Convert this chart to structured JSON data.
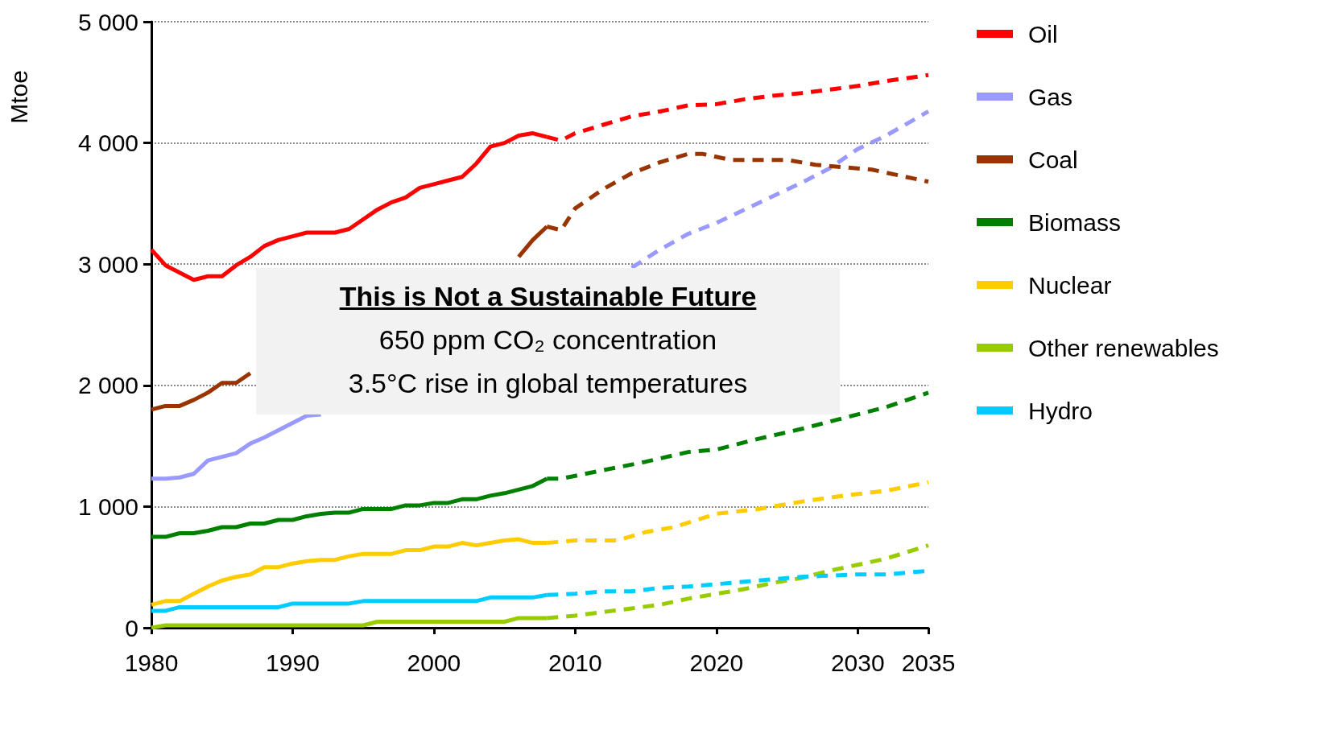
{
  "chart_data": {
    "type": "line",
    "ylabel": "Mtoe",
    "xlim": [
      1980,
      2035
    ],
    "xticks": [
      1980,
      1990,
      2000,
      2010,
      2020,
      2030,
      2035
    ],
    "ylim": [
      0,
      5000
    ],
    "yticks": [
      {
        "value": 0,
        "label": "0"
      },
      {
        "value": 1000,
        "label": "1 000"
      },
      {
        "value": 2000,
        "label": "2 000"
      },
      {
        "value": 3000,
        "label": "3 000"
      },
      {
        "value": 4000,
        "label": "4 000"
      },
      {
        "value": 5000,
        "label": "5 000"
      }
    ],
    "grid": "y",
    "legend": "right",
    "marker": "none",
    "annotations": [
      "This is Not a Sustainable Future",
      "650 ppm CO₂ concentration",
      "3.5°C rise in global temperatures"
    ],
    "series": [
      {
        "name": "Oil",
        "color": "#ff0000",
        "line_style": "solid",
        "x": [
          1980,
          1981,
          1982,
          1983,
          1984,
          1985,
          1986,
          1987,
          1988,
          1989,
          1990,
          1991,
          1992,
          1993,
          1994,
          1995,
          1996,
          1997,
          1998,
          1999,
          2000,
          2001,
          2002,
          2003,
          2004,
          2005,
          2006,
          2007,
          2008
        ],
        "values": [
          3120,
          2990,
          2930,
          2870,
          2900,
          2900,
          2990,
          3060,
          3150,
          3200,
          3230,
          3260,
          3260,
          3260,
          3290,
          3370,
          3450,
          3510,
          3550,
          3630,
          3660,
          3690,
          3720,
          3830,
          3970,
          4000,
          4060,
          4080,
          4050
        ]
      },
      {
        "color": "#ff0000",
        "line_style": "dashed",
        "x": [
          2008,
          2009,
          2010,
          2012,
          2014,
          2016,
          2018,
          2020,
          2022,
          2024,
          2026,
          2028,
          2030,
          2032,
          2035
        ],
        "values": [
          4050,
          4020,
          4080,
          4150,
          4220,
          4260,
          4310,
          4320,
          4360,
          4390,
          4410,
          4440,
          4470,
          4510,
          4560
        ]
      },
      {
        "name": "Gas",
        "color": "#9999ff",
        "line_style": "solid",
        "x": [
          1980,
          1981,
          1982,
          1983,
          1984,
          1985,
          1986,
          1987,
          1988,
          1989,
          1990,
          1991,
          1992
        ],
        "values": [
          1230,
          1230,
          1240,
          1270,
          1380,
          1410,
          1440,
          1520,
          1570,
          1630,
          1690,
          1750,
          1760
        ]
      },
      {
        "color": "#9999ff",
        "line_style": "dashed",
        "x": [
          2014,
          2016,
          2018,
          2020,
          2022,
          2024,
          2026,
          2028,
          2030,
          2032,
          2035
        ],
        "values": [
          2970,
          3120,
          3250,
          3340,
          3450,
          3560,
          3670,
          3790,
          3950,
          4060,
          4260
        ]
      },
      {
        "name": "Coal",
        "color": "#993300",
        "line_style": "solid",
        "x": [
          1980,
          1981,
          1982,
          1983,
          1984,
          1985,
          1986,
          1987
        ],
        "values": [
          1800,
          1830,
          1830,
          1880,
          1940,
          2020,
          2020,
          2100
        ]
      },
      {
        "color": "#993300",
        "line_style": "solid",
        "x": [
          2006,
          2007,
          2008
        ],
        "values": [
          3060,
          3200,
          3310
        ]
      },
      {
        "color": "#993300",
        "line_style": "dashed",
        "x": [
          2008,
          2009,
          2010,
          2012,
          2014,
          2016,
          2018,
          2019,
          2021,
          2023,
          2025,
          2027,
          2029,
          2031,
          2035
        ],
        "values": [
          3310,
          3280,
          3460,
          3620,
          3750,
          3840,
          3910,
          3910,
          3860,
          3860,
          3860,
          3820,
          3800,
          3780,
          3680
        ]
      },
      {
        "name": "Biomass",
        "color": "#008000",
        "line_style": "solid",
        "x": [
          1980,
          1981,
          1982,
          1983,
          1984,
          1985,
          1986,
          1987,
          1988,
          1989,
          1990,
          1991,
          1992,
          1993,
          1994,
          1995,
          1996,
          1997,
          1998,
          1999,
          2000,
          2001,
          2002,
          2003,
          2004,
          2005,
          2006,
          2007,
          2008
        ],
        "values": [
          750,
          750,
          780,
          780,
          800,
          830,
          830,
          860,
          860,
          890,
          890,
          920,
          940,
          950,
          950,
          980,
          980,
          980,
          1010,
          1010,
          1030,
          1030,
          1060,
          1060,
          1090,
          1110,
          1140,
          1170,
          1230
        ]
      },
      {
        "color": "#008000",
        "line_style": "dashed",
        "x": [
          2008,
          2009,
          2012,
          2015,
          2018,
          2020,
          2023,
          2026,
          2029,
          2032,
          2035
        ],
        "values": [
          1230,
          1230,
          1300,
          1370,
          1450,
          1470,
          1560,
          1640,
          1730,
          1820,
          1940
        ]
      },
      {
        "name": "Nuclear",
        "color": "#ffcc00",
        "line_style": "solid",
        "x": [
          1980,
          1981,
          1982,
          1983,
          1984,
          1985,
          1986,
          1987,
          1988,
          1989,
          1990,
          1991,
          1992,
          1993,
          1994,
          1995,
          1996,
          1997,
          1998,
          1999,
          2000,
          2001,
          2002,
          2003,
          2004,
          2005,
          2006,
          2007,
          2008
        ],
        "values": [
          190,
          220,
          220,
          280,
          340,
          390,
          420,
          440,
          500,
          500,
          530,
          550,
          560,
          560,
          590,
          610,
          610,
          610,
          640,
          640,
          670,
          670,
          700,
          680,
          700,
          720,
          730,
          700,
          700
        ]
      },
      {
        "color": "#ffcc00",
        "line_style": "dashed",
        "x": [
          2008,
          2010,
          2013,
          2015,
          2017,
          2020,
          2023,
          2026,
          2029,
          2032,
          2035
        ],
        "values": [
          700,
          720,
          720,
          790,
          830,
          940,
          980,
          1040,
          1090,
          1130,
          1200
        ]
      },
      {
        "name": "Other renewables",
        "color": "#99cc00",
        "line_style": "solid",
        "x": [
          1980,
          1981,
          1995,
          1996,
          2005,
          2006,
          2007,
          2008
        ],
        "values": [
          0,
          20,
          20,
          50,
          50,
          80,
          80,
          80
        ]
      },
      {
        "color": "#99cc00",
        "line_style": "dashed",
        "x": [
          2008,
          2010,
          2012,
          2014,
          2016,
          2018,
          2020,
          2022,
          2024,
          2026,
          2028,
          2030,
          2032,
          2035
        ],
        "values": [
          80,
          100,
          130,
          160,
          190,
          240,
          280,
          320,
          370,
          410,
          470,
          520,
          570,
          680
        ]
      },
      {
        "name": "Hydro",
        "color": "#00ccff",
        "line_style": "solid",
        "x": [
          1980,
          1981,
          1982,
          1989,
          1990,
          1994,
          1995,
          2003,
          2004,
          2007,
          2008
        ],
        "values": [
          140,
          140,
          170,
          170,
          200,
          200,
          220,
          220,
          250,
          250,
          270
        ]
      },
      {
        "color": "#00ccff",
        "line_style": "dashed",
        "x": [
          2008,
          2010,
          2012,
          2014,
          2016,
          2018,
          2020,
          2022,
          2024,
          2026,
          2028,
          2030,
          2032,
          2035
        ],
        "values": [
          270,
          280,
          300,
          300,
          330,
          340,
          360,
          380,
          400,
          420,
          430,
          440,
          440,
          470
        ]
      }
    ]
  }
}
